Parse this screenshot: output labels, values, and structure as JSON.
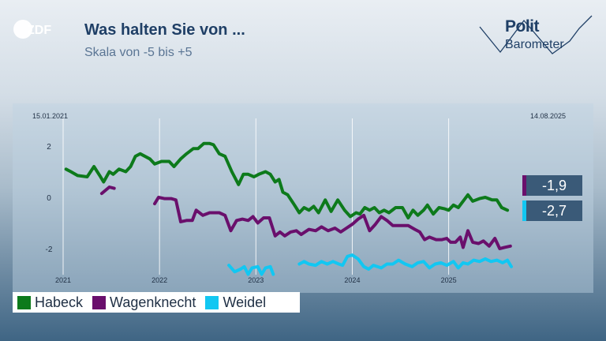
{
  "header": {
    "logo_text": "ZDF",
    "title": "Was halten Sie von ...",
    "subtitle": "Skala von -5 bis +5",
    "brand_line1": "Polit",
    "brand_line2": "Barometer"
  },
  "dates": {
    "start": "15.01.2021",
    "end": "14.08.2025"
  },
  "colors": {
    "habeck": "#0d7a1b",
    "wagenknecht": "#6a0f6c",
    "weidel": "#12c7f2",
    "tag_bg": "#3a5a78"
  },
  "latest": [
    {
      "value": "-1,9",
      "series": "Wagenknecht"
    },
    {
      "value": "-2,7",
      "series": "Weidel"
    }
  ],
  "legend": [
    "Habeck",
    "Wagenknecht",
    "Weidel"
  ],
  "chart_data": {
    "type": "line",
    "title": "Was halten Sie von ...",
    "subtitle": "Skala von -5 bis +5",
    "ylim": [
      -3,
      2.5
    ],
    "yticks": [
      "2",
      "0",
      "-2"
    ],
    "xticks": [
      "2021",
      "2022",
      "2023",
      "2024",
      "2025"
    ],
    "grid": true,
    "legend_position": "bottom-left",
    "series": [
      {
        "name": "Habeck",
        "points": [
          [
            2021.03,
            1.1
          ],
          [
            2021.08,
            1.0
          ],
          [
            2021.15,
            0.85
          ],
          [
            2021.25,
            0.8
          ],
          [
            2021.32,
            1.2
          ],
          [
            2021.38,
            0.85
          ],
          [
            2021.42,
            0.6
          ],
          [
            2021.48,
            1.0
          ],
          [
            2021.52,
            0.9
          ],
          [
            2021.58,
            1.1
          ],
          [
            2021.65,
            1.0
          ],
          [
            2021.7,
            1.2
          ],
          [
            2021.75,
            1.6
          ],
          [
            2021.8,
            1.7
          ],
          [
            2021.9,
            1.5
          ],
          [
            2021.95,
            1.3
          ],
          [
            2022.02,
            1.4
          ],
          [
            2022.1,
            1.4
          ],
          [
            2022.15,
            1.2
          ],
          [
            2022.22,
            1.5
          ],
          [
            2022.28,
            1.7
          ],
          [
            2022.35,
            1.9
          ],
          [
            2022.4,
            1.9
          ],
          [
            2022.46,
            2.1
          ],
          [
            2022.52,
            2.1
          ],
          [
            2022.56,
            2.05
          ],
          [
            2022.62,
            1.7
          ],
          [
            2022.68,
            1.6
          ],
          [
            2022.75,
            1.0
          ],
          [
            2022.82,
            0.5
          ],
          [
            2022.87,
            0.9
          ],
          [
            2022.92,
            0.9
          ],
          [
            2022.98,
            0.8
          ],
          [
            2023.03,
            0.9
          ],
          [
            2023.1,
            1.0
          ],
          [
            2023.15,
            0.9
          ],
          [
            2023.2,
            0.6
          ],
          [
            2023.24,
            0.7
          ],
          [
            2023.28,
            0.2
          ],
          [
            2023.33,
            0.1
          ],
          [
            2023.4,
            -0.3
          ],
          [
            2023.45,
            -0.6
          ],
          [
            2023.5,
            -0.4
          ],
          [
            2023.55,
            -0.5
          ],
          [
            2023.6,
            -0.35
          ],
          [
            2023.65,
            -0.6
          ],
          [
            2023.72,
            -0.1
          ],
          [
            2023.78,
            -0.55
          ],
          [
            2023.85,
            -0.1
          ],
          [
            2023.92,
            -0.5
          ],
          [
            2023.98,
            -0.75
          ],
          [
            2024.04,
            -0.6
          ],
          [
            2024.08,
            -0.65
          ],
          [
            2024.13,
            -0.4
          ],
          [
            2024.18,
            -0.5
          ],
          [
            2024.23,
            -0.4
          ],
          [
            2024.28,
            -0.6
          ],
          [
            2024.33,
            -0.5
          ],
          [
            2024.38,
            -0.6
          ],
          [
            2024.45,
            -0.4
          ],
          [
            2024.52,
            -0.4
          ],
          [
            2024.58,
            -0.8
          ],
          [
            2024.63,
            -0.5
          ],
          [
            2024.68,
            -0.7
          ],
          [
            2024.74,
            -0.5
          ],
          [
            2024.78,
            -0.3
          ],
          [
            2024.84,
            -0.65
          ],
          [
            2024.9,
            -0.4
          ],
          [
            2024.96,
            -0.45
          ],
          [
            2025.0,
            -0.5
          ],
          [
            2025.05,
            -0.3
          ],
          [
            2025.1,
            -0.4
          ],
          [
            2025.15,
            -0.15
          ],
          [
            2025.2,
            0.1
          ],
          [
            2025.25,
            -0.15
          ],
          [
            2025.32,
            -0.05
          ],
          [
            2025.38,
            0.0
          ],
          [
            2025.45,
            -0.1
          ],
          [
            2025.5,
            -0.1
          ],
          [
            2025.55,
            -0.4
          ],
          [
            2025.61,
            -0.5
          ]
        ]
      },
      {
        "name": "Wagenknecht",
        "points": [
          [
            2021.4,
            0.15
          ],
          [
            2021.48,
            0.4
          ],
          [
            2021.53,
            0.35
          ],
          null,
          [
            2021.95,
            -0.25
          ],
          [
            2021.99,
            0.0
          ],
          [
            2022.05,
            -0.05
          ],
          [
            2022.12,
            -0.05
          ],
          [
            2022.17,
            -0.1
          ],
          [
            2022.22,
            -0.95
          ],
          [
            2022.28,
            -0.9
          ],
          [
            2022.34,
            -0.9
          ],
          [
            2022.38,
            -0.5
          ],
          [
            2022.45,
            -0.7
          ],
          [
            2022.52,
            -0.6
          ],
          [
            2022.58,
            -0.6
          ],
          [
            2022.62,
            -0.6
          ],
          [
            2022.68,
            -0.7
          ],
          [
            2022.74,
            -1.3
          ],
          [
            2022.8,
            -0.9
          ],
          [
            2022.86,
            -0.85
          ],
          [
            2022.92,
            -0.9
          ],
          [
            2022.97,
            -0.75
          ],
          [
            2023.02,
            -1.0
          ],
          [
            2023.08,
            -0.8
          ],
          [
            2023.14,
            -0.8
          ],
          [
            2023.2,
            -1.5
          ],
          [
            2023.25,
            -1.35
          ],
          [
            2023.3,
            -1.5
          ],
          [
            2023.36,
            -1.35
          ],
          [
            2023.42,
            -1.3
          ],
          [
            2023.47,
            -1.45
          ],
          [
            2023.55,
            -1.25
          ],
          [
            2023.62,
            -1.3
          ],
          [
            2023.68,
            -1.15
          ],
          [
            2023.75,
            -1.3
          ],
          [
            2023.82,
            -1.2
          ],
          [
            2023.88,
            -1.35
          ],
          [
            2023.94,
            -1.2
          ],
          [
            2024.0,
            -1.05
          ],
          [
            2024.06,
            -0.85
          ],
          [
            2024.12,
            -0.7
          ],
          [
            2024.18,
            -1.3
          ],
          [
            2024.24,
            -1.05
          ],
          [
            2024.3,
            -0.75
          ],
          [
            2024.36,
            -0.9
          ],
          [
            2024.42,
            -1.1
          ],
          [
            2024.5,
            -1.1
          ],
          [
            2024.58,
            -1.1
          ],
          [
            2024.65,
            -1.25
          ],
          [
            2024.7,
            -1.35
          ],
          [
            2024.75,
            -1.65
          ],
          [
            2024.8,
            -1.55
          ],
          [
            2024.87,
            -1.65
          ],
          [
            2024.93,
            -1.65
          ],
          [
            2024.98,
            -1.6
          ],
          [
            2025.02,
            -1.75
          ],
          [
            2025.07,
            -1.75
          ],
          [
            2025.12,
            -1.55
          ],
          [
            2025.15,
            -1.95
          ],
          [
            2025.2,
            -1.3
          ],
          [
            2025.25,
            -1.75
          ],
          [
            2025.31,
            -1.8
          ],
          [
            2025.36,
            -1.7
          ],
          [
            2025.42,
            -1.9
          ],
          [
            2025.48,
            -1.6
          ],
          [
            2025.53,
            -2.0
          ],
          [
            2025.58,
            -1.95
          ],
          [
            2025.64,
            -1.9
          ]
        ]
      },
      {
        "name": "Weidel",
        "points": [
          [
            2022.72,
            -2.65
          ],
          [
            2022.78,
            -2.9
          ],
          [
            2022.84,
            -2.8
          ],
          [
            2022.88,
            -2.7
          ],
          [
            2022.92,
            -3.0
          ],
          [
            2022.96,
            -2.75
          ],
          [
            2023.02,
            -2.7
          ],
          [
            2023.06,
            -3.0
          ],
          [
            2023.1,
            -2.75
          ],
          [
            2023.15,
            -2.7
          ],
          [
            2023.18,
            -3.0
          ],
          null,
          [
            2023.45,
            -2.6
          ],
          [
            2023.5,
            -2.5
          ],
          [
            2023.55,
            -2.6
          ],
          [
            2023.62,
            -2.65
          ],
          [
            2023.68,
            -2.5
          ],
          [
            2023.74,
            -2.6
          ],
          [
            2023.8,
            -2.5
          ],
          [
            2023.86,
            -2.6
          ],
          [
            2023.9,
            -2.65
          ],
          [
            2023.95,
            -2.3
          ],
          [
            2024.0,
            -2.25
          ],
          [
            2024.06,
            -2.4
          ],
          [
            2024.12,
            -2.7
          ],
          [
            2024.17,
            -2.8
          ],
          [
            2024.22,
            -2.65
          ],
          [
            2024.3,
            -2.75
          ],
          [
            2024.36,
            -2.6
          ],
          [
            2024.42,
            -2.6
          ],
          [
            2024.48,
            -2.45
          ],
          [
            2024.55,
            -2.6
          ],
          [
            2024.62,
            -2.7
          ],
          [
            2024.68,
            -2.55
          ],
          [
            2024.74,
            -2.5
          ],
          [
            2024.8,
            -2.75
          ],
          [
            2024.86,
            -2.6
          ],
          [
            2024.92,
            -2.55
          ],
          [
            2024.98,
            -2.65
          ],
          [
            2025.05,
            -2.5
          ],
          [
            2025.1,
            -2.75
          ],
          [
            2025.15,
            -2.55
          ],
          [
            2025.2,
            -2.6
          ],
          [
            2025.26,
            -2.45
          ],
          [
            2025.32,
            -2.5
          ],
          [
            2025.38,
            -2.4
          ],
          [
            2025.44,
            -2.5
          ],
          [
            2025.5,
            -2.45
          ],
          [
            2025.56,
            -2.55
          ],
          [
            2025.61,
            -2.45
          ],
          [
            2025.65,
            -2.7
          ]
        ]
      }
    ]
  }
}
